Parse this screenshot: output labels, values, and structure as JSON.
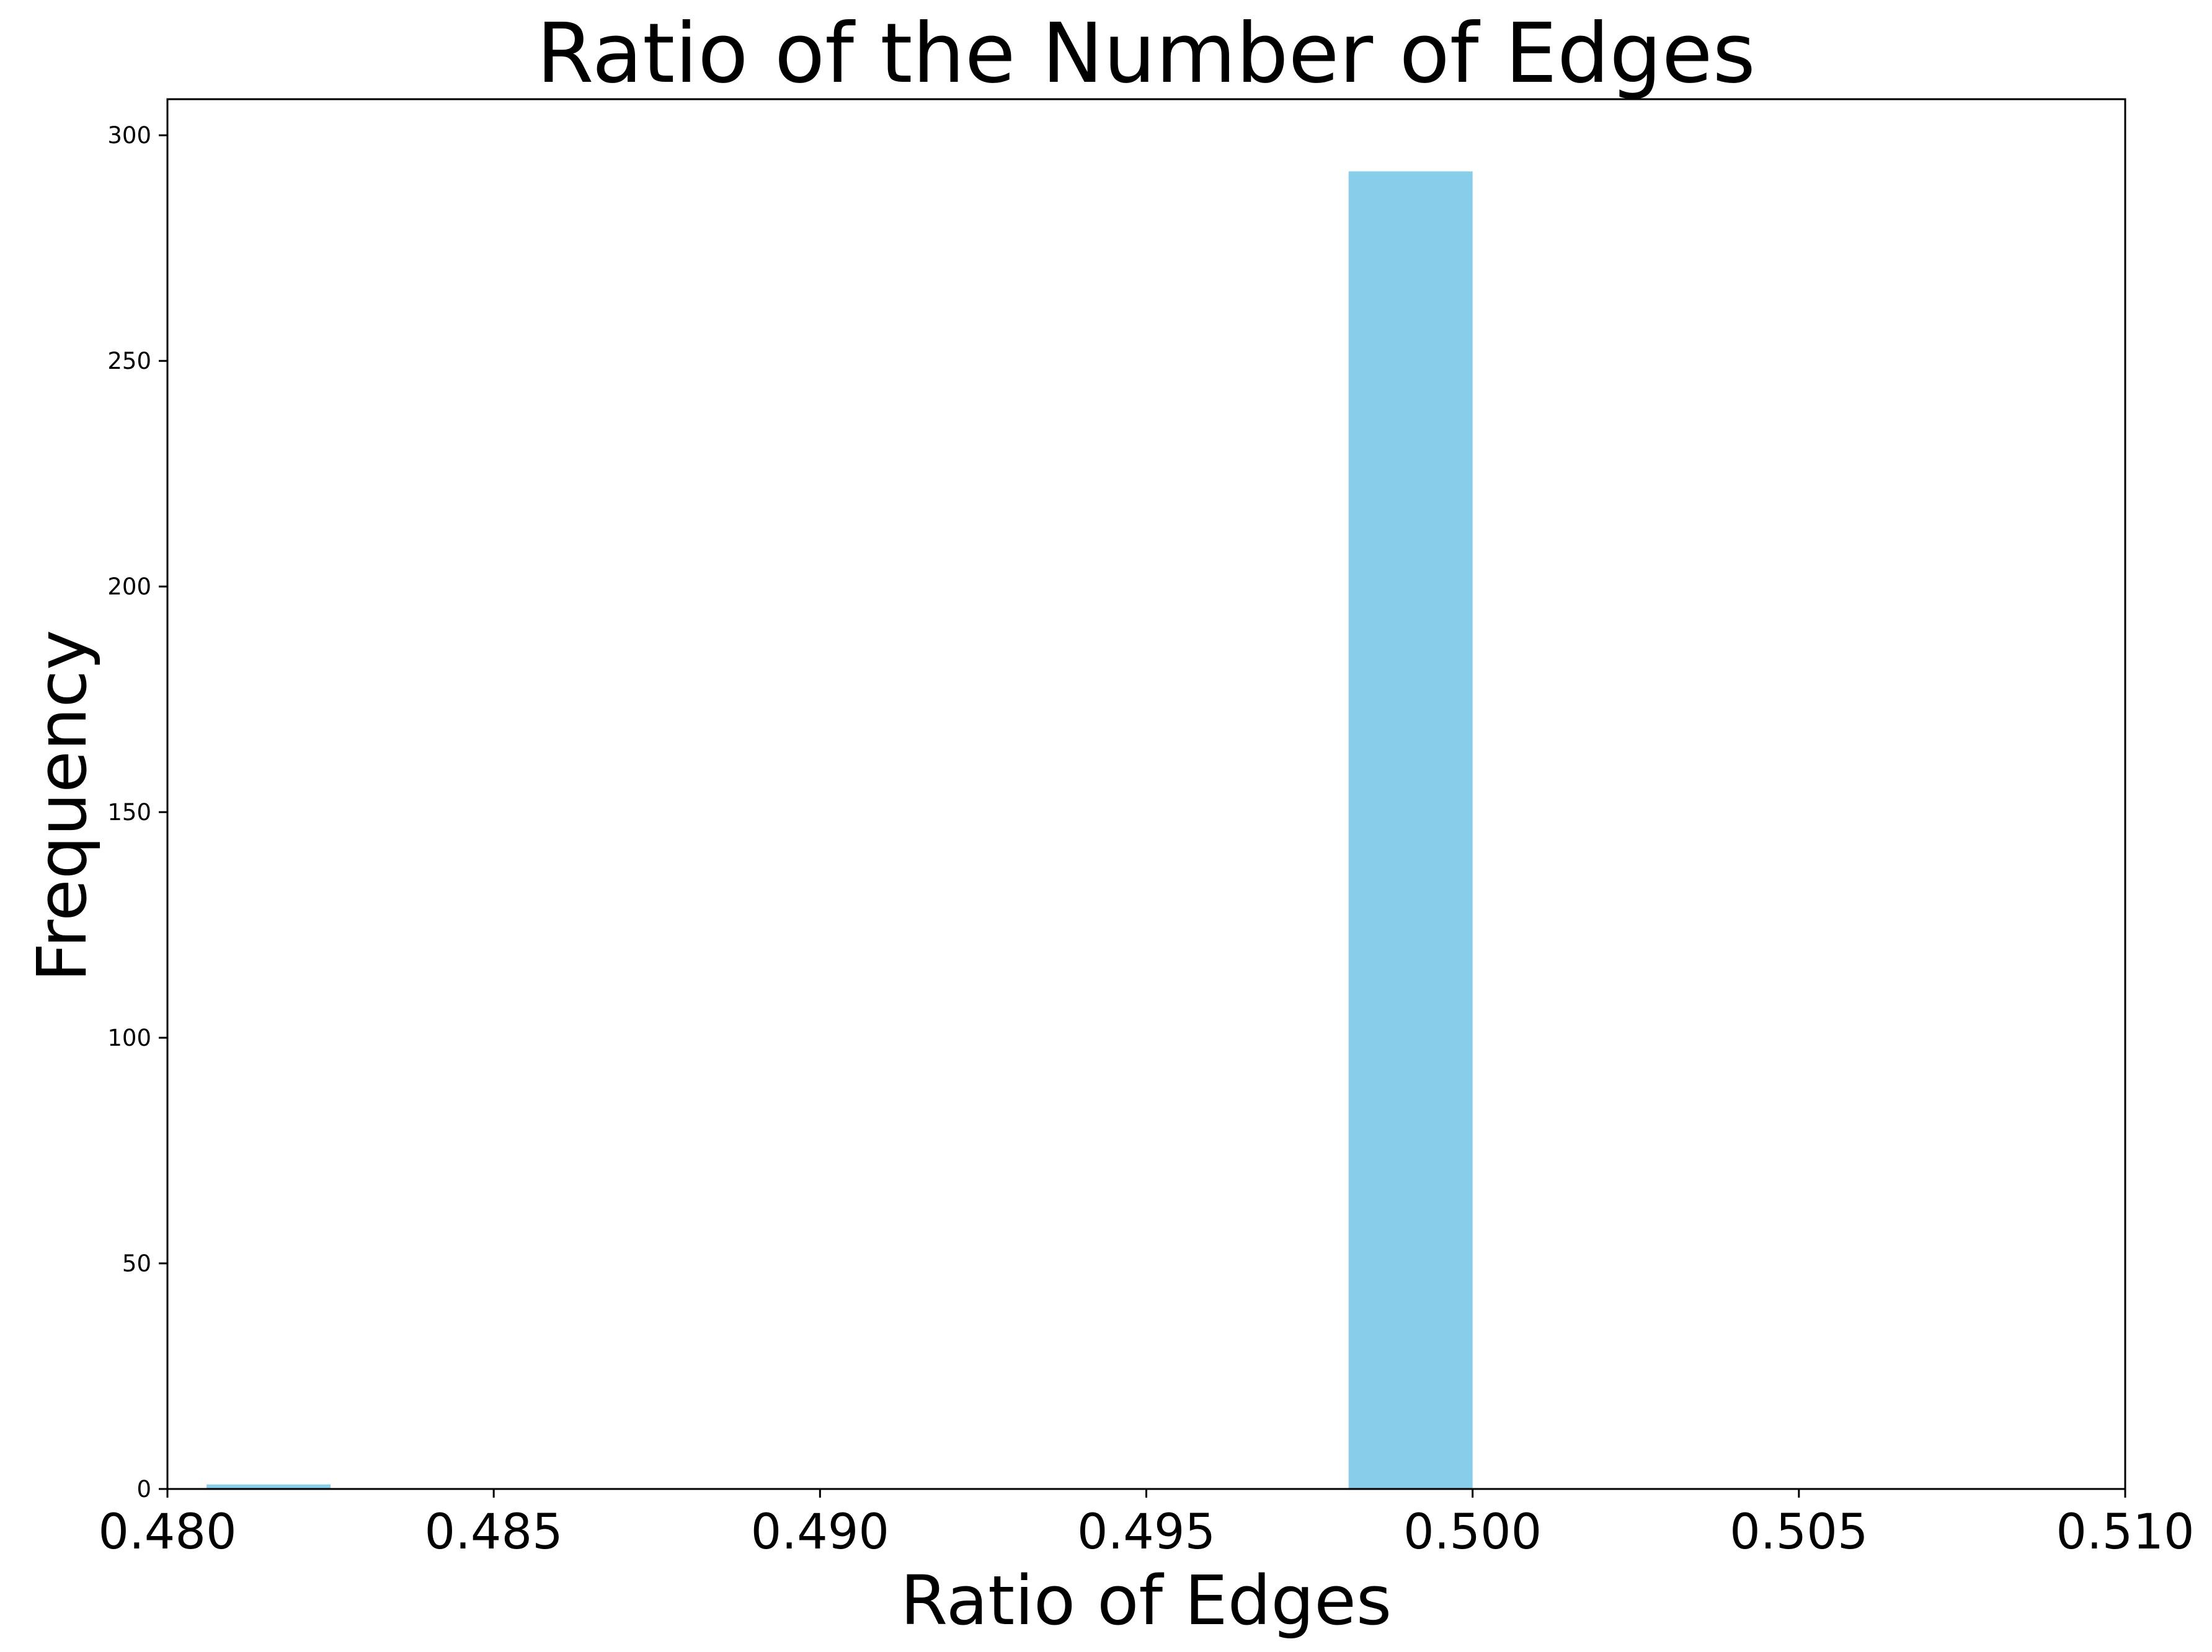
{
  "chart_data": {
    "type": "bar",
    "title": "Ratio of the Number of Edges",
    "xlabel": "Ratio of Edges",
    "ylabel": "Frequency",
    "xlim": [
      0.48,
      0.51
    ],
    "ylim": [
      0,
      308
    ],
    "xticks": [
      "0.480",
      "0.485",
      "0.490",
      "0.495",
      "0.500",
      "0.505",
      "0.510"
    ],
    "yticks": [
      "0",
      "50",
      "100",
      "150",
      "200",
      "250",
      "300"
    ],
    "bins": [
      {
        "x0": 0.4806,
        "x1": 0.4825,
        "value": 1
      },
      {
        "x0": 0.4981,
        "x1": 0.5,
        "value": 292
      }
    ],
    "bar_color": "#87ceeb",
    "grid": false
  }
}
